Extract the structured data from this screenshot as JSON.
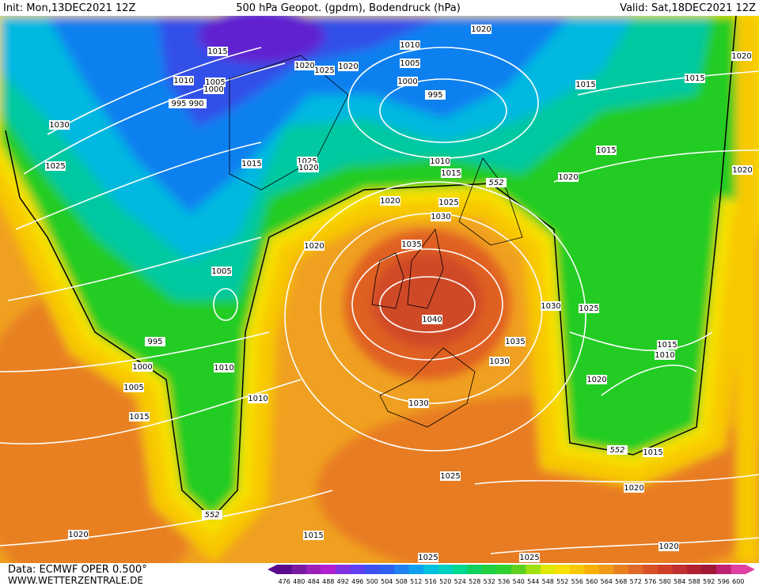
{
  "header": {
    "init": "Init: Mon,13DEC2021 12Z",
    "title": "500 hPa Geopot. (gpdm), Bodendruck (hPa)",
    "valid": "Valid: Sat,18DEC2021 12Z"
  },
  "footer": {
    "source": "Data: ECMWF OPER 0.500°",
    "url": "WWW.WETTERZENTRALE.DE"
  },
  "isobar_labels": [
    "1015",
    "1010",
    "1005",
    "1000",
    "995",
    "990",
    "1030",
    "1025",
    "1020",
    "1025",
    "1020",
    "1010",
    "1005",
    "1000",
    "995",
    "1020",
    "1015",
    "1015",
    "1020",
    "1015",
    "1025",
    "1020",
    "1010",
    "1015",
    "1015",
    "1020",
    "1020",
    "1020",
    "1025",
    "1030",
    "1035",
    "1020",
    "1005",
    "1040",
    "1030",
    "1025",
    "1035",
    "1030",
    "995",
    "1000",
    "1005",
    "1010",
    "1015",
    "1010",
    "1030",
    "1020",
    "1015",
    "1010",
    "1025",
    "1020",
    "1015",
    "1020",
    "1015",
    "1020",
    "1025",
    "1025",
    "552",
    "552",
    "552"
  ],
  "colorbar": {
    "labels": [
      476,
      480,
      484,
      488,
      492,
      496,
      500,
      504,
      508,
      512,
      516,
      520,
      524,
      528,
      532,
      536,
      540,
      544,
      548,
      552,
      556,
      560,
      564,
      568,
      572,
      576,
      580,
      584,
      588,
      592,
      596,
      600
    ],
    "colors": [
      "#5a0a8c",
      "#7a1aa0",
      "#9a20b8",
      "#b020d0",
      "#8030e0",
      "#6040f0",
      "#4050f0",
      "#3060f0",
      "#2080f0",
      "#10a0f0",
      "#00c0e0",
      "#00d0c0",
      "#00d890",
      "#10d060",
      "#20d040",
      "#30d030",
      "#60d020",
      "#a0e010",
      "#e0e800",
      "#f8e000",
      "#f8c800",
      "#f8b000",
      "#f09818",
      "#e88020",
      "#e06828",
      "#d85028",
      "#d04028",
      "#c03030",
      "#b02030",
      "#a01838",
      "#c02070",
      "#e040a0"
    ]
  }
}
